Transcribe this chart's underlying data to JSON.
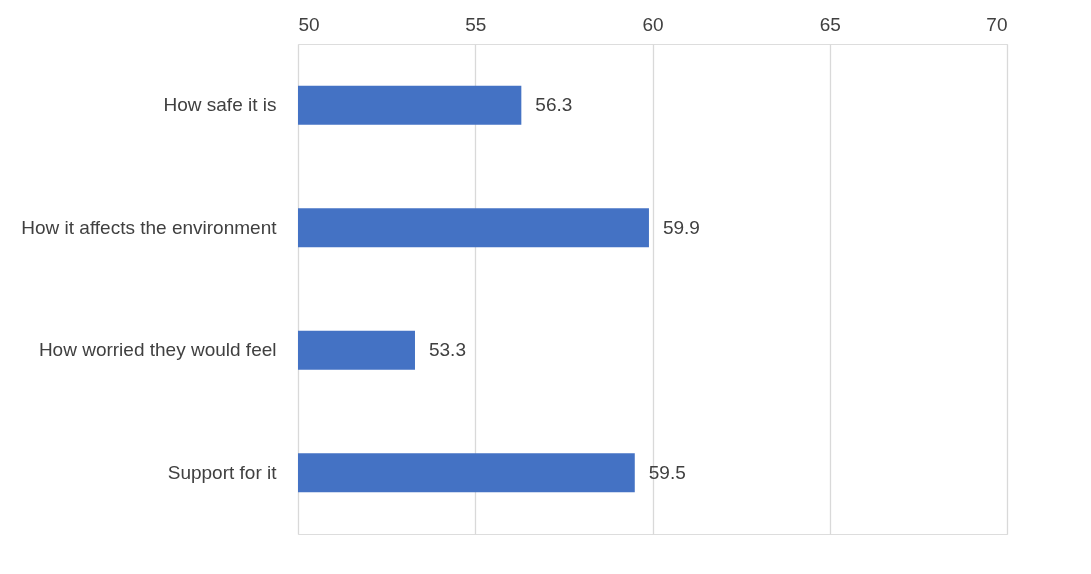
{
  "chart_data": {
    "type": "bar",
    "orientation": "horizontal",
    "categories": [
      "How safe it is",
      "How it affects the environment",
      "How worried they would feel",
      "Support for it"
    ],
    "values": [
      56.3,
      59.9,
      53.3,
      59.5
    ],
    "color": "#4472c4",
    "xlim": [
      50,
      70
    ],
    "xticks": [
      50,
      55,
      60,
      65,
      70
    ],
    "grid": "x",
    "data_labels": true
  }
}
